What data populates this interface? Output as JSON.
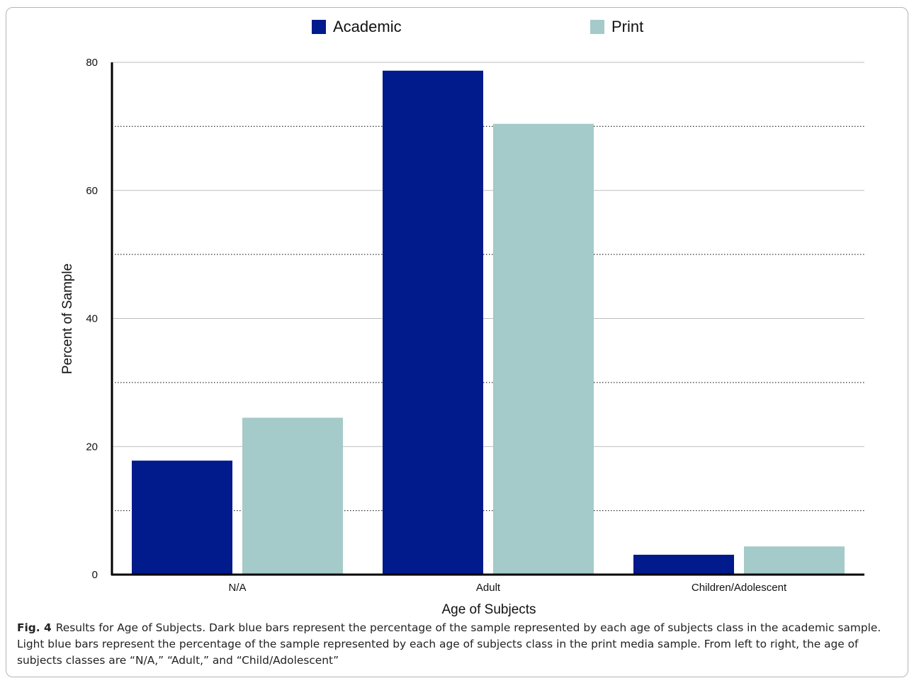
{
  "chart_data": {
    "type": "bar",
    "categories": [
      "N/A",
      "Adult",
      "Children/Adolescent"
    ],
    "series": [
      {
        "name": "Academic",
        "color": "#011a8c",
        "values": [
          17.8,
          78.7,
          3.1
        ]
      },
      {
        "name": "Print",
        "color": "#a4caca",
        "values": [
          24.5,
          70.4,
          4.4
        ]
      }
    ],
    "xlabel": "Age of Subjects",
    "ylabel": "Percent of Sample",
    "ylim": [
      0,
      80
    ],
    "yticks": [
      0,
      20,
      40,
      60,
      80
    ],
    "grid": {
      "solid": [
        20,
        40,
        60,
        80
      ],
      "dotted": [
        10,
        30,
        50,
        70
      ]
    },
    "legend_position": "top"
  },
  "caption": {
    "label": "Fig. 4",
    "text": "Results for Age of Subjects. Dark blue bars represent the percentage of the sample represented by each age of subjects class in the academic sample. Light blue bars represent the percentage of the sample represented by each age of subjects class in the print media sample. From left to right, the age of subjects classes are “N/A,” “Adult,” and “Child/Adolescent”"
  }
}
